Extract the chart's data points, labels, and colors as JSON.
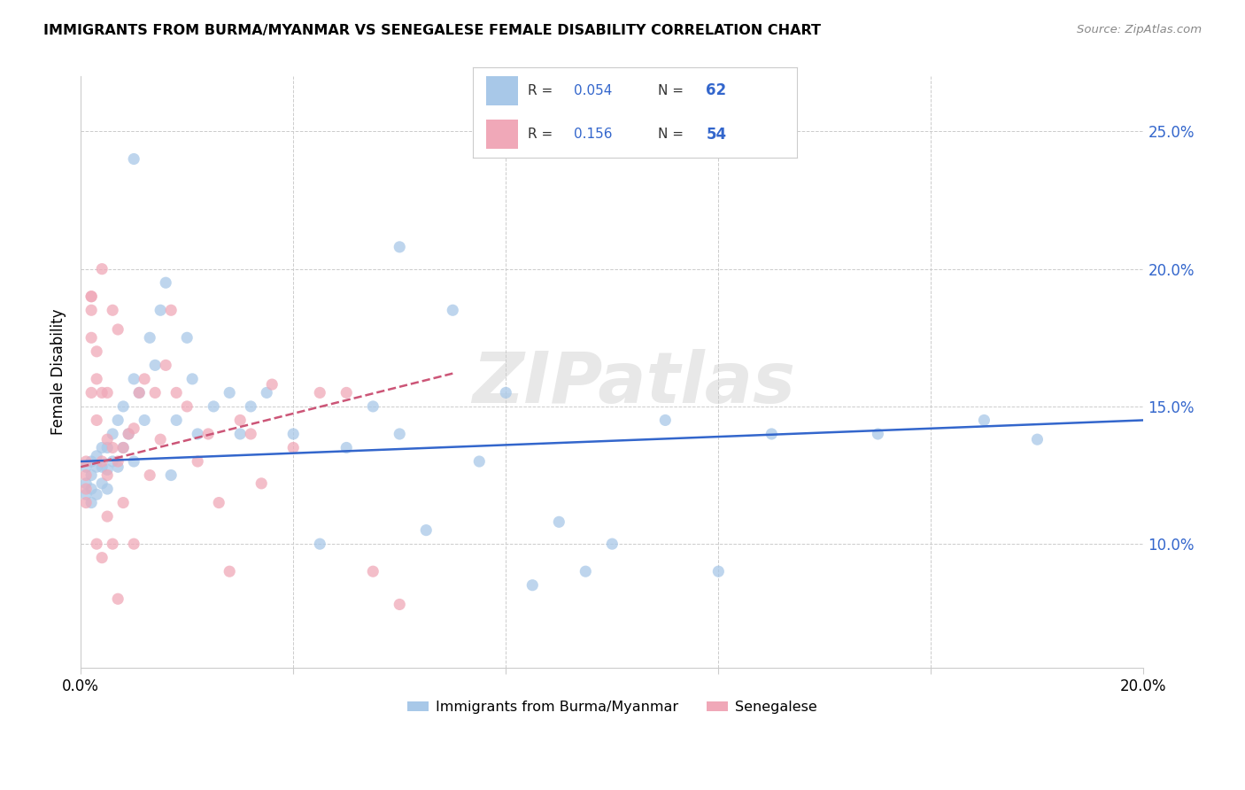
{
  "title": "IMMIGRANTS FROM BURMA/MYANMAR VS SENEGALESE FEMALE DISABILITY CORRELATION CHART",
  "source": "Source: ZipAtlas.com",
  "ylabel": "Female Disability",
  "y_ticks": [
    0.1,
    0.15,
    0.2,
    0.25
  ],
  "y_tick_labels": [
    "10.0%",
    "15.0%",
    "20.0%",
    "25.0%"
  ],
  "xlim": [
    0.0,
    0.2
  ],
  "ylim": [
    0.055,
    0.27
  ],
  "legend_r1_label": "R = ",
  "legend_r1_val": "0.054",
  "legend_n1_label": "N = ",
  "legend_n1_val": "62",
  "legend_r2_label": "R =  ",
  "legend_r2_val": "0.156",
  "legend_n2_label": "N = ",
  "legend_n2_val": "54",
  "color_blue": "#a8c8e8",
  "color_pink": "#f0a8b8",
  "line_blue": "#3366cc",
  "line_pink": "#cc5577",
  "text_blue": "#3366cc",
  "watermark": "ZIPatlas",
  "scatter_blue_x": [
    0.001,
    0.001,
    0.001,
    0.002,
    0.002,
    0.002,
    0.002,
    0.003,
    0.003,
    0.003,
    0.004,
    0.004,
    0.004,
    0.005,
    0.005,
    0.005,
    0.006,
    0.006,
    0.007,
    0.007,
    0.008,
    0.008,
    0.009,
    0.01,
    0.01,
    0.011,
    0.012,
    0.013,
    0.014,
    0.015,
    0.016,
    0.017,
    0.018,
    0.02,
    0.021,
    0.022,
    0.025,
    0.028,
    0.03,
    0.032,
    0.035,
    0.04,
    0.045,
    0.05,
    0.055,
    0.06,
    0.065,
    0.07,
    0.075,
    0.08,
    0.09,
    0.1,
    0.11,
    0.12,
    0.13,
    0.15,
    0.17,
    0.18,
    0.085,
    0.095,
    0.06,
    0.01
  ],
  "scatter_blue_y": [
    0.128,
    0.122,
    0.118,
    0.13,
    0.125,
    0.12,
    0.115,
    0.132,
    0.128,
    0.118,
    0.135,
    0.128,
    0.122,
    0.127,
    0.135,
    0.12,
    0.13,
    0.14,
    0.128,
    0.145,
    0.135,
    0.15,
    0.14,
    0.16,
    0.13,
    0.155,
    0.145,
    0.175,
    0.165,
    0.185,
    0.195,
    0.125,
    0.145,
    0.175,
    0.16,
    0.14,
    0.15,
    0.155,
    0.14,
    0.15,
    0.155,
    0.14,
    0.1,
    0.135,
    0.15,
    0.14,
    0.105,
    0.185,
    0.13,
    0.155,
    0.108,
    0.1,
    0.145,
    0.09,
    0.14,
    0.14,
    0.145,
    0.138,
    0.085,
    0.09,
    0.208,
    0.24
  ],
  "scatter_pink_x": [
    0.001,
    0.001,
    0.001,
    0.001,
    0.002,
    0.002,
    0.002,
    0.002,
    0.003,
    0.003,
    0.003,
    0.004,
    0.004,
    0.004,
    0.005,
    0.005,
    0.005,
    0.006,
    0.006,
    0.007,
    0.007,
    0.008,
    0.008,
    0.009,
    0.01,
    0.01,
    0.011,
    0.012,
    0.013,
    0.014,
    0.015,
    0.016,
    0.017,
    0.018,
    0.02,
    0.022,
    0.024,
    0.026,
    0.028,
    0.03,
    0.032,
    0.034,
    0.036,
    0.04,
    0.045,
    0.05,
    0.055,
    0.06,
    0.002,
    0.003,
    0.004,
    0.005,
    0.006,
    0.007
  ],
  "scatter_pink_y": [
    0.13,
    0.125,
    0.12,
    0.115,
    0.185,
    0.19,
    0.175,
    0.155,
    0.17,
    0.145,
    0.1,
    0.155,
    0.13,
    0.095,
    0.138,
    0.125,
    0.11,
    0.135,
    0.1,
    0.13,
    0.08,
    0.135,
    0.115,
    0.14,
    0.142,
    0.1,
    0.155,
    0.16,
    0.125,
    0.155,
    0.138,
    0.165,
    0.185,
    0.155,
    0.15,
    0.13,
    0.14,
    0.115,
    0.09,
    0.145,
    0.14,
    0.122,
    0.158,
    0.135,
    0.155,
    0.155,
    0.09,
    0.078,
    0.19,
    0.16,
    0.2,
    0.155,
    0.185,
    0.178
  ]
}
